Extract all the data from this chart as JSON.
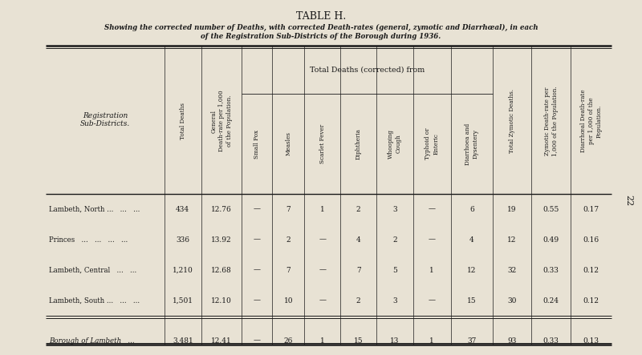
{
  "title": "TABLE H.",
  "subtitle_line1": "Showing the corrected number of Deaths, with corrected Death-rates (general, zymotic and Diarrhœal), in each",
  "subtitle_line2": "of the Registration Sub-Districts of the Borough during 1936.",
  "bg_color": "#e8e2d4",
  "text_color": "#1a1a1a",
  "group_header": "Total Deaths (corrected) from",
  "row_header_label": "Registration\nSub-Districts.",
  "rows": [
    {
      "name": "Lambeth, North ...   ...   ...",
      "total_deaths": "434",
      "gen_rate": "12.76",
      "small_pox": "—",
      "measles": "7",
      "scarlet": "1",
      "diphtheria": "2",
      "whooping": "3",
      "typhoid": "—",
      "diarrhoea": "6",
      "total_zymotic": "19",
      "zymotic_rate": "0.55",
      "diarrheal_rate": "0.17"
    },
    {
      "name": "Princes   ...   ...   ...   ...",
      "total_deaths": "336",
      "gen_rate": "13.92",
      "small_pox": "—",
      "measles": "2",
      "scarlet": "—",
      "diphtheria": "4",
      "whooping": "2",
      "typhoid": "—",
      "diarrhoea": "4",
      "total_zymotic": "12",
      "zymotic_rate": "0.49",
      "diarrheal_rate": "0.16"
    },
    {
      "name": "Lambeth, Central   ...   ...",
      "total_deaths": "1,210",
      "gen_rate": "12.68",
      "small_pox": "—",
      "measles": "7",
      "scarlet": "—",
      "diphtheria": "7",
      "whooping": "5",
      "typhoid": "1",
      "diarrhoea": "12",
      "total_zymotic": "32",
      "zymotic_rate": "0.33",
      "diarrheal_rate": "0.12"
    },
    {
      "name": "Lambeth, South ...   ...   ...",
      "total_deaths": "1,501",
      "gen_rate": "12.10",
      "small_pox": "—",
      "measles": "10",
      "scarlet": "—",
      "diphtheria": "2",
      "whooping": "3",
      "typhoid": "—",
      "diarrhoea": "15",
      "total_zymotic": "30",
      "zymotic_rate": "0.24",
      "diarrheal_rate": "0.12"
    }
  ],
  "total_row": {
    "name": "Borough of Lambeth   ...",
    "total_deaths": "3,481",
    "gen_rate": "12.41",
    "small_pox": "—",
    "measles": "26",
    "scarlet": "1",
    "diphtheria": "15",
    "whooping": "13",
    "typhoid": "1",
    "diarrhoea": "37",
    "total_zymotic": "93",
    "zymotic_rate": "0.33",
    "diarrheal_rate": "0.13"
  },
  "page_number": "22",
  "col_headers": [
    "Total Deaths",
    "General\nDeath-rate per 1,000\nof the Population.",
    "Small Pox",
    "Measles",
    "Scarlet Fever",
    "Diphtheria",
    "Whooping\nCough",
    "Typhoid or\nEnteric",
    "Diarrhoea and\nDysentery",
    "Total Zymotic Deaths.",
    "Zymotic Death-rate per\n1,000 of the Population.",
    "Diarrhœal Death-rate\nper 1,000 of the\nPopulation."
  ]
}
